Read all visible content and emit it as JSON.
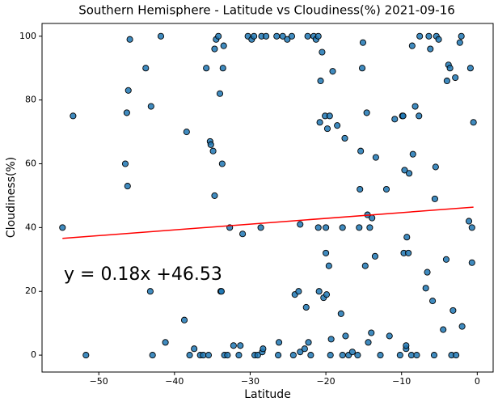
{
  "chart_data": {
    "type": "scatter",
    "title": "Southern Hemisphere - Latitude vs Cloudiness(%) 2021-09-16",
    "xlabel": "Latitude",
    "ylabel": "Cloudiness(%)",
    "annotation": "y = 0.18x +46.53",
    "color": "#1f77b4",
    "edgecolor": "#000000",
    "line_color": "#ff0000",
    "xlim": [
      -57.5,
      2.1
    ],
    "ylim": [
      -5.3,
      104
    ],
    "xticks": [
      {
        "value": -50,
        "label": "−50"
      },
      {
        "value": -40,
        "label": "−40"
      },
      {
        "value": -30,
        "label": "−30"
      },
      {
        "value": -20,
        "label": "−20"
      },
      {
        "value": -10,
        "label": "−10"
      },
      0
    ],
    "yticks": [
      0,
      20,
      40,
      60,
      80,
      100
    ],
    "regression": {
      "x": [
        -54.8,
        -0.5
      ],
      "y": [
        36.6,
        46.4
      ]
    },
    "x": [
      -54.8,
      -53.4,
      -51.7,
      -46.5,
      -46.3,
      -46.2,
      -46.1,
      -45.9,
      -43.8,
      -43.2,
      -43.1,
      -42.9,
      -41.8,
      -41.2,
      -38.7,
      -38.4,
      -38,
      -37.4,
      -36.6,
      -36.2,
      -35.8,
      -35.5,
      -35.3,
      -35.2,
      -34.9,
      -34.7,
      -34.7,
      -34.5,
      -34.2,
      -34,
      -33.9,
      -33.8,
      -33.7,
      -33.6,
      -33.5,
      -33.4,
      -33,
      -32.7,
      -32.2,
      -31.5,
      -31.3,
      -31,
      -30.3,
      -29.8,
      -29.5,
      -29.4,
      -29,
      -28.6,
      -28.5,
      -28.4,
      -28.3,
      -27.9,
      -26.5,
      -26.3,
      -26.2,
      -25.7,
      -25.1,
      -24.5,
      -24.3,
      -24.1,
      -23.6,
      -23.4,
      -23.4,
      -22.8,
      -22.6,
      -22.4,
      -22.3,
      -22,
      -21.6,
      -21.3,
      -21,
      -21,
      -20.9,
      -20.8,
      -20.7,
      -20.5,
      -20.3,
      -20.1,
      -20,
      -20,
      -19.9,
      -19.8,
      -19.6,
      -19.5,
      -19.3,
      -19.1,
      -19.4,
      -18.5,
      -18,
      -17.8,
      -17.5,
      -17.4,
      -17.8,
      -17,
      -16.5,
      -15.8,
      -15.6,
      -15.5,
      -15.4,
      -15.2,
      -15.1,
      -14.8,
      -14.6,
      -14.5,
      -14.4,
      -14.2,
      -14,
      -13.9,
      -13.5,
      -13.4,
      -12.8,
      -12,
      -11.6,
      -10.9,
      -10.2,
      -9.9,
      -9.8,
      -9.7,
      -9.6,
      -9.4,
      -9.4,
      -9.3,
      -9.1,
      -9,
      -8.7,
      -8.6,
      -8.5,
      -8.2,
      -8,
      -7.7,
      -7.6,
      -6.8,
      -6.6,
      -6.4,
      -6.2,
      -5.9,
      -5.7,
      -5.6,
      -5.5,
      -5.4,
      -5.1,
      -4.5,
      -4.1,
      -4,
      -3.8,
      -3.6,
      -3.4,
      -3.2,
      -2.9,
      -2.8,
      -2.3,
      -2.1,
      -2,
      -1.1,
      -0.9,
      -0.7,
      -0.7,
      -0.5
    ],
    "values": [
      40,
      75,
      0,
      60,
      76,
      53,
      83,
      99,
      90,
      20,
      78,
      0,
      100,
      4,
      11,
      70,
      0,
      2,
      0,
      0,
      90,
      0,
      67,
      66,
      64,
      50,
      96,
      99,
      100,
      82,
      20,
      20,
      60,
      90,
      97,
      0,
      0,
      40,
      3,
      0,
      3,
      38,
      100,
      99,
      100,
      0,
      0,
      40,
      100,
      1,
      2,
      100,
      100,
      0,
      4,
      100,
      99,
      100,
      0,
      19,
      20,
      41,
      1,
      2,
      15,
      100,
      4,
      0,
      100,
      99,
      100,
      40,
      20,
      73,
      86,
      95,
      18,
      75,
      32,
      40,
      19,
      71,
      28,
      75,
      5,
      89,
      0,
      72,
      13,
      40,
      68,
      6,
      0,
      0,
      1,
      0,
      40,
      52,
      64,
      90,
      98,
      28,
      76,
      44,
      4,
      40,
      7,
      43,
      31,
      62,
      0,
      52,
      6,
      74,
      0,
      75,
      75,
      32,
      58,
      2,
      3,
      37,
      32,
      57,
      0,
      97,
      63,
      78,
      0,
      75,
      100,
      21,
      26,
      100,
      96,
      17,
      0,
      49,
      59,
      100,
      99,
      8,
      30,
      86,
      91,
      90,
      0,
      14,
      87,
      0,
      98,
      100,
      9,
      42,
      90,
      40,
      29,
      73
    ]
  }
}
